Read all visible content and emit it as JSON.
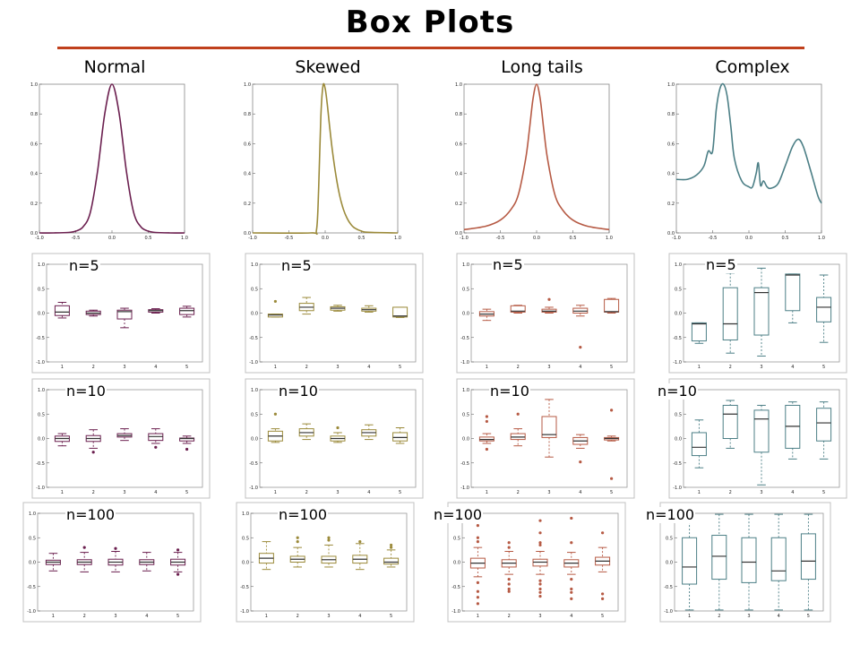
{
  "title": "Box Plots",
  "columns": [
    "Normal",
    "Skewed",
    "Long tails",
    "Complex"
  ],
  "row_labels": [
    "n=5",
    "n=10",
    "n=100"
  ],
  "colors": {
    "accent_rule": "#c0401c",
    "series": [
      "#6b1f4f",
      "#9b8a3a",
      "#b65a44",
      "#4c7f86"
    ]
  },
  "chart_data": [
    {
      "type": "line",
      "kind": "density",
      "col": 0,
      "xlim": [
        -1,
        1
      ],
      "ylim": [
        0,
        1
      ],
      "xticks": [
        "-1.0",
        "-0.5",
        "0.0",
        "0.5",
        "1.0"
      ],
      "yticks": [
        "0.0",
        "0.2",
        "0.4",
        "0.6",
        "0.8",
        "1.0"
      ],
      "x": [
        -1,
        -0.8,
        -0.6,
        -0.5,
        -0.4,
        -0.3,
        -0.2,
        -0.1,
        0,
        0.1,
        0.2,
        0.3,
        0.4,
        0.5,
        0.6,
        0.8,
        1
      ],
      "y": [
        0,
        0,
        0.003,
        0.012,
        0.04,
        0.135,
        0.41,
        0.8,
        1.0,
        0.8,
        0.41,
        0.135,
        0.04,
        0.012,
        0.003,
        0,
        0
      ]
    },
    {
      "type": "line",
      "kind": "density",
      "col": 1,
      "xlim": [
        -1,
        1
      ],
      "ylim": [
        0,
        1
      ],
      "xticks": [
        "-1.0",
        "-0.5",
        "0.0",
        "0.5",
        "1.0"
      ],
      "yticks": [
        "0.0",
        "0.2",
        "0.4",
        "0.6",
        "0.8",
        "1.0"
      ],
      "x": [
        -1,
        -0.2,
        -0.12,
        -0.09,
        -0.06,
        -0.03,
        0,
        0.03,
        0.06,
        0.1,
        0.15,
        0.2,
        0.25,
        0.3,
        0.35,
        0.4,
        0.5,
        0.6,
        1
      ],
      "y": [
        0,
        0,
        0.02,
        0.3,
        0.78,
        0.99,
        0.97,
        0.86,
        0.72,
        0.55,
        0.38,
        0.25,
        0.16,
        0.1,
        0.06,
        0.035,
        0.012,
        0.004,
        0
      ]
    },
    {
      "type": "line",
      "kind": "density",
      "col": 2,
      "xlim": [
        -1,
        1
      ],
      "ylim": [
        0,
        1
      ],
      "xticks": [
        "-1.0",
        "-0.5",
        "0.0",
        "0.5",
        "1.0"
      ],
      "yticks": [
        "0.0",
        "0.2",
        "0.4",
        "0.6",
        "0.8",
        "1.0"
      ],
      "x": [
        -1,
        -0.7,
        -0.5,
        -0.35,
        -0.25,
        -0.15,
        -0.1,
        -0.05,
        0,
        0.05,
        0.1,
        0.15,
        0.25,
        0.35,
        0.5,
        0.7,
        1
      ],
      "y": [
        0.022,
        0.045,
        0.086,
        0.16,
        0.26,
        0.5,
        0.69,
        0.9,
        1.0,
        0.9,
        0.69,
        0.5,
        0.26,
        0.16,
        0.086,
        0.045,
        0.022
      ]
    },
    {
      "type": "line",
      "kind": "density",
      "col": 3,
      "xlim": [
        -1,
        1
      ],
      "ylim": [
        0,
        1
      ],
      "xticks": [
        "-1.0",
        "-0.5",
        "0.0",
        "0.5",
        "1.0"
      ],
      "yticks": [
        "0.0",
        "0.2",
        "0.4",
        "0.6",
        "0.8",
        "1.0"
      ],
      "x": [
        -1,
        -0.85,
        -0.72,
        -0.62,
        -0.56,
        -0.5,
        -0.45,
        -0.4,
        -0.35,
        -0.3,
        -0.25,
        -0.2,
        -0.1,
        0,
        0.05,
        0.1,
        0.13,
        0.16,
        0.2,
        0.25,
        0.3,
        0.4,
        0.5,
        0.6,
        0.68,
        0.75,
        0.85,
        0.95,
        1
      ],
      "y": [
        0.36,
        0.36,
        0.39,
        0.45,
        0.55,
        0.55,
        0.83,
        0.97,
        1.0,
        0.92,
        0.72,
        0.5,
        0.35,
        0.31,
        0.31,
        0.4,
        0.47,
        0.32,
        0.35,
        0.31,
        0.3,
        0.33,
        0.45,
        0.58,
        0.63,
        0.58,
        0.42,
        0.25,
        0.2
      ]
    },
    {
      "type": "box",
      "col": 0,
      "row": 0,
      "categories": [
        "1",
        "2",
        "3",
        "4",
        "5"
      ],
      "ylim": [
        -1,
        1
      ],
      "yticks": [
        "-1.0",
        "-0.5",
        "0.0",
        "0.5",
        "1.0"
      ],
      "boxes": [
        {
          "q1": -0.05,
          "median": 0.02,
          "q3": 0.15,
          "whislo": -0.1,
          "whishi": 0.22,
          "fliers": []
        },
        {
          "q1": -0.03,
          "median": 0.0,
          "q3": 0.04,
          "whislo": -0.06,
          "whishi": 0.06,
          "fliers": []
        },
        {
          "q1": -0.12,
          "median": 0.03,
          "q3": 0.06,
          "whislo": -0.3,
          "whishi": 0.1,
          "fliers": []
        },
        {
          "q1": 0.02,
          "median": 0.05,
          "q3": 0.07,
          "whislo": 0.0,
          "whishi": 0.09,
          "fliers": []
        },
        {
          "q1": -0.03,
          "median": 0.05,
          "q3": 0.1,
          "whislo": -0.08,
          "whishi": 0.14,
          "fliers": []
        }
      ]
    },
    {
      "type": "box",
      "col": 1,
      "row": 0,
      "categories": [
        "1",
        "2",
        "3",
        "4",
        "5"
      ],
      "ylim": [
        -1,
        1
      ],
      "yticks": [
        "-1.0",
        "-0.5",
        "0.0",
        "0.5",
        "1.0"
      ],
      "boxes": [
        {
          "q1": -0.08,
          "median": -0.04,
          "q3": -0.02,
          "whislo": -0.08,
          "whishi": -0.02,
          "fliers": [
            0.24
          ]
        },
        {
          "q1": 0.05,
          "median": 0.12,
          "q3": 0.2,
          "whislo": -0.02,
          "whishi": 0.32,
          "fliers": []
        },
        {
          "q1": 0.06,
          "median": 0.1,
          "q3": 0.13,
          "whislo": 0.04,
          "whishi": 0.16,
          "fliers": []
        },
        {
          "q1": 0.04,
          "median": 0.07,
          "q3": 0.1,
          "whislo": 0.02,
          "whishi": 0.15,
          "fliers": []
        },
        {
          "q1": -0.08,
          "median": -0.06,
          "q3": 0.12,
          "whislo": -0.09,
          "whishi": 0.12,
          "fliers": []
        }
      ]
    },
    {
      "type": "box",
      "col": 2,
      "row": 0,
      "categories": [
        "1",
        "2",
        "3",
        "4",
        "5"
      ],
      "ylim": [
        -1,
        1
      ],
      "yticks": [
        "-1.0",
        "-0.5",
        "0.0",
        "0.5",
        "1.0"
      ],
      "boxes": [
        {
          "q1": -0.06,
          "median": -0.02,
          "q3": 0.03,
          "whislo": -0.15,
          "whishi": 0.08,
          "fliers": []
        },
        {
          "q1": 0.02,
          "median": 0.04,
          "q3": 0.15,
          "whislo": 0.0,
          "whishi": 0.16,
          "fliers": []
        },
        {
          "q1": 0.02,
          "median": 0.04,
          "q3": 0.08,
          "whislo": 0.0,
          "whishi": 0.12,
          "fliers": [
            0.28
          ]
        },
        {
          "q1": 0.0,
          "median": 0.04,
          "q3": 0.1,
          "whislo": -0.06,
          "whishi": 0.16,
          "fliers": [
            -0.7
          ]
        },
        {
          "q1": 0.02,
          "median": 0.03,
          "q3": 0.28,
          "whislo": 0.0,
          "whishi": 0.3,
          "fliers": []
        }
      ]
    },
    {
      "type": "box",
      "col": 3,
      "row": 0,
      "categories": [
        "1",
        "2",
        "3",
        "4",
        "5"
      ],
      "ylim": [
        -1,
        1
      ],
      "yticks": [
        "-1.0",
        "-0.5",
        "0.0",
        "0.5",
        "1.0"
      ],
      "boxes": [
        {
          "q1": -0.57,
          "median": -0.22,
          "q3": -0.2,
          "whislo": -0.62,
          "whishi": -0.2,
          "fliers": []
        },
        {
          "q1": -0.55,
          "median": -0.22,
          "q3": 0.52,
          "whislo": -0.82,
          "whishi": 0.82,
          "fliers": []
        },
        {
          "q1": -0.45,
          "median": 0.42,
          "q3": 0.52,
          "whislo": -0.88,
          "whishi": 0.92,
          "fliers": []
        },
        {
          "q1": 0.05,
          "median": 0.78,
          "q3": 0.8,
          "whislo": -0.2,
          "whishi": 0.8,
          "fliers": []
        },
        {
          "q1": -0.18,
          "median": 0.12,
          "q3": 0.32,
          "whislo": -0.6,
          "whishi": 0.78,
          "fliers": []
        }
      ]
    },
    {
      "type": "box",
      "col": 0,
      "row": 1,
      "categories": [
        "1",
        "2",
        "3",
        "4",
        "5"
      ],
      "ylim": [
        -1,
        1
      ],
      "yticks": [
        "-1.0",
        "-0.5",
        "0.0",
        "0.5",
        "1.0"
      ],
      "boxes": [
        {
          "q1": -0.06,
          "median": 0.0,
          "q3": 0.05,
          "whislo": -0.15,
          "whishi": 0.1,
          "fliers": []
        },
        {
          "q1": -0.06,
          "median": 0.0,
          "q3": 0.06,
          "whislo": -0.2,
          "whishi": 0.18,
          "fliers": [
            -0.28
          ]
        },
        {
          "q1": 0.03,
          "median": 0.06,
          "q3": 0.1,
          "whislo": -0.04,
          "whishi": 0.2,
          "fliers": []
        },
        {
          "q1": -0.04,
          "median": 0.04,
          "q3": 0.1,
          "whislo": -0.1,
          "whishi": 0.2,
          "fliers": [
            -0.18
          ]
        },
        {
          "q1": -0.05,
          "median": 0.0,
          "q3": 0.01,
          "whislo": -0.1,
          "whishi": 0.05,
          "fliers": [
            -0.22
          ]
        }
      ]
    },
    {
      "type": "box",
      "col": 1,
      "row": 1,
      "categories": [
        "1",
        "2",
        "3",
        "4",
        "5"
      ],
      "ylim": [
        -1,
        1
      ],
      "yticks": [
        "-1.0",
        "-0.5",
        "0.0",
        "0.5",
        "1.0"
      ],
      "boxes": [
        {
          "q1": -0.05,
          "median": 0.05,
          "q3": 0.15,
          "whislo": -0.08,
          "whishi": 0.2,
          "fliers": [
            0.5
          ]
        },
        {
          "q1": 0.05,
          "median": 0.12,
          "q3": 0.2,
          "whislo": -0.02,
          "whishi": 0.3,
          "fliers": []
        },
        {
          "q1": -0.05,
          "median": 0.0,
          "q3": 0.05,
          "whislo": -0.08,
          "whishi": 0.12,
          "fliers": [
            0.22
          ]
        },
        {
          "q1": 0.05,
          "median": 0.12,
          "q3": 0.18,
          "whislo": -0.02,
          "whishi": 0.28,
          "fliers": []
        },
        {
          "q1": -0.05,
          "median": 0.02,
          "q3": 0.12,
          "whislo": -0.1,
          "whishi": 0.22,
          "fliers": []
        }
      ]
    },
    {
      "type": "box",
      "col": 2,
      "row": 1,
      "categories": [
        "1",
        "2",
        "3",
        "4",
        "5"
      ],
      "ylim": [
        -1,
        1
      ],
      "yticks": [
        "-1.0",
        "-0.5",
        "0.0",
        "0.5",
        "1.0"
      ],
      "boxes": [
        {
          "q1": -0.05,
          "median": -0.02,
          "q3": 0.03,
          "whislo": -0.1,
          "whishi": 0.1,
          "fliers": [
            0.45,
            0.35,
            -0.22
          ]
        },
        {
          "q1": -0.02,
          "median": 0.03,
          "q3": 0.1,
          "whislo": -0.15,
          "whishi": 0.2,
          "fliers": [
            0.5
          ]
        },
        {
          "q1": 0.02,
          "median": 0.08,
          "q3": 0.45,
          "whislo": -0.38,
          "whishi": 0.8,
          "fliers": []
        },
        {
          "q1": -0.12,
          "median": -0.05,
          "q3": 0.02,
          "whislo": -0.2,
          "whishi": 0.08,
          "fliers": [
            -0.48
          ]
        },
        {
          "q1": -0.03,
          "median": 0.0,
          "q3": 0.02,
          "whislo": -0.05,
          "whishi": 0.05,
          "fliers": [
            0.58,
            -0.82
          ]
        }
      ]
    },
    {
      "type": "box",
      "col": 3,
      "row": 1,
      "categories": [
        "1",
        "2",
        "3",
        "4",
        "5"
      ],
      "ylim": [
        -1,
        1
      ],
      "yticks": [
        "-1.0",
        "-0.5",
        "0.0",
        "0.5",
        "1.0"
      ],
      "boxes": [
        {
          "q1": -0.35,
          "median": -0.18,
          "q3": 0.12,
          "whislo": -0.6,
          "whishi": 0.38,
          "fliers": []
        },
        {
          "q1": 0.0,
          "median": 0.5,
          "q3": 0.68,
          "whislo": -0.2,
          "whishi": 0.78,
          "fliers": []
        },
        {
          "q1": -0.28,
          "median": 0.4,
          "q3": 0.58,
          "whislo": -0.95,
          "whishi": 0.68,
          "fliers": []
        },
        {
          "q1": -0.2,
          "median": 0.25,
          "q3": 0.68,
          "whislo": -0.42,
          "whishi": 0.75,
          "fliers": []
        },
        {
          "q1": -0.05,
          "median": 0.32,
          "q3": 0.62,
          "whislo": -0.42,
          "whishi": 0.75,
          "fliers": []
        }
      ]
    },
    {
      "type": "box",
      "col": 0,
      "row": 2,
      "categories": [
        "1",
        "2",
        "3",
        "4",
        "5"
      ],
      "ylim": [
        -1,
        1
      ],
      "yticks": [
        "-1.0",
        "-0.5",
        "0.0",
        "0.5",
        "1.0"
      ],
      "boxes": [
        {
          "q1": -0.05,
          "median": 0.0,
          "q3": 0.04,
          "whislo": -0.18,
          "whishi": 0.18,
          "fliers": []
        },
        {
          "q1": -0.05,
          "median": 0.0,
          "q3": 0.05,
          "whislo": -0.2,
          "whishi": 0.2,
          "fliers": [
            0.3
          ]
        },
        {
          "q1": -0.06,
          "median": 0.0,
          "q3": 0.06,
          "whislo": -0.2,
          "whishi": 0.22,
          "fliers": [
            0.28
          ]
        },
        {
          "q1": -0.05,
          "median": 0.0,
          "q3": 0.05,
          "whislo": -0.18,
          "whishi": 0.2,
          "fliers": []
        },
        {
          "q1": -0.06,
          "median": 0.0,
          "q3": 0.06,
          "whislo": -0.2,
          "whishi": 0.2,
          "fliers": [
            0.25,
            -0.25
          ]
        }
      ]
    },
    {
      "type": "box",
      "col": 1,
      "row": 2,
      "categories": [
        "1",
        "2",
        "3",
        "4",
        "5"
      ],
      "ylim": [
        -1,
        1
      ],
      "yticks": [
        "-1.0",
        "-0.5",
        "0.0",
        "0.5",
        "1.0"
      ],
      "boxes": [
        {
          "q1": -0.02,
          "median": 0.08,
          "q3": 0.18,
          "whislo": -0.15,
          "whishi": 0.42,
          "fliers": []
        },
        {
          "q1": 0.0,
          "median": 0.06,
          "q3": 0.12,
          "whislo": -0.1,
          "whishi": 0.3,
          "fliers": [
            0.42,
            0.5
          ]
        },
        {
          "q1": -0.02,
          "median": 0.05,
          "q3": 0.12,
          "whislo": -0.1,
          "whishi": 0.35,
          "fliers": [
            0.45,
            0.5
          ]
        },
        {
          "q1": -0.02,
          "median": 0.06,
          "q3": 0.14,
          "whislo": -0.15,
          "whishi": 0.38,
          "fliers": [
            0.42
          ]
        },
        {
          "q1": -0.04,
          "median": 0.0,
          "q3": 0.08,
          "whislo": -0.1,
          "whishi": 0.25,
          "fliers": [
            0.3,
            0.35
          ]
        }
      ]
    },
    {
      "type": "box",
      "col": 2,
      "row": 2,
      "categories": [
        "1",
        "2",
        "3",
        "4",
        "5"
      ],
      "ylim": [
        -1,
        1
      ],
      "yticks": [
        "-1.0",
        "-0.5",
        "0.0",
        "0.5",
        "1.0"
      ],
      "boxes": [
        {
          "q1": -0.12,
          "median": -0.02,
          "q3": 0.08,
          "whislo": -0.3,
          "whishi": 0.3,
          "fliers": [
            0.9,
            0.75,
            0.5,
            0.42,
            -0.42,
            -0.6,
            -0.72,
            -0.85
          ]
        },
        {
          "q1": -0.1,
          "median": -0.02,
          "q3": 0.05,
          "whislo": -0.25,
          "whishi": 0.22,
          "fliers": [
            0.4,
            0.3,
            -0.35,
            -0.45,
            -0.55,
            -0.6
          ]
        },
        {
          "q1": -0.08,
          "median": 0.0,
          "q3": 0.06,
          "whislo": -0.25,
          "whishi": 0.22,
          "fliers": [
            0.85,
            0.6,
            0.4,
            0.35,
            -0.38,
            -0.45,
            -0.55,
            -0.62,
            -0.7
          ]
        },
        {
          "q1": -0.1,
          "median": -0.02,
          "q3": 0.05,
          "whislo": -0.25,
          "whishi": 0.2,
          "fliers": [
            0.9,
            0.4,
            -0.35,
            -0.55,
            -0.62,
            -0.75
          ]
        },
        {
          "q1": -0.06,
          "median": 0.02,
          "q3": 0.1,
          "whislo": -0.2,
          "whishi": 0.3,
          "fliers": [
            0.6,
            -0.65,
            -0.75
          ]
        }
      ]
    },
    {
      "type": "box",
      "col": 3,
      "row": 2,
      "categories": [
        "1",
        "2",
        "3",
        "4",
        "5"
      ],
      "ylim": [
        -1,
        1
      ],
      "yticks": [
        "-1.0",
        "-0.5",
        "0.0",
        "0.5",
        "1.0"
      ],
      "boxes": [
        {
          "q1": -0.45,
          "median": -0.1,
          "q3": 0.5,
          "whislo": -0.98,
          "whishi": 0.98,
          "fliers": []
        },
        {
          "q1": -0.35,
          "median": 0.12,
          "q3": 0.55,
          "whislo": -0.98,
          "whishi": 0.98,
          "fliers": []
        },
        {
          "q1": -0.42,
          "median": 0.0,
          "q3": 0.5,
          "whislo": -0.98,
          "whishi": 0.98,
          "fliers": []
        },
        {
          "q1": -0.38,
          "median": -0.18,
          "q3": 0.5,
          "whislo": -0.98,
          "whishi": 0.98,
          "fliers": []
        },
        {
          "q1": -0.35,
          "median": 0.02,
          "q3": 0.58,
          "whislo": -0.98,
          "whishi": 0.98,
          "fliers": []
        }
      ]
    }
  ]
}
